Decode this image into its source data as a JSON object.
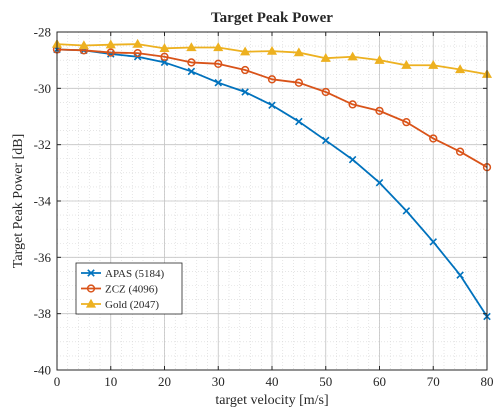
{
  "chart_data": {
    "type": "line",
    "title": "Target Peak Power",
    "xlabel": "target velocity [m/s]",
    "ylabel": "Target Peak Power [dB]",
    "xlim": [
      0,
      80
    ],
    "ylim": [
      -40,
      -28
    ],
    "xticks": [
      0,
      10,
      20,
      30,
      40,
      50,
      60,
      70,
      80
    ],
    "yticks": [
      -40,
      -38,
      -36,
      -34,
      -32,
      -30,
      -28
    ],
    "x": [
      0,
      5,
      10,
      15,
      20,
      25,
      30,
      35,
      40,
      45,
      50,
      55,
      60,
      65,
      70,
      75,
      80
    ],
    "grid": true,
    "minor_grid": true,
    "legend_position": "lower-left",
    "series": [
      {
        "name": "APAS (5184)",
        "color": "#0072BD",
        "marker": "x",
        "values": [
          -28.62,
          -28.65,
          -28.78,
          -28.88,
          -29.08,
          -29.4,
          -29.8,
          -30.13,
          -30.6,
          -31.18,
          -31.85,
          -32.53,
          -33.35,
          -34.35,
          -35.45,
          -36.63,
          -38.1
        ]
      },
      {
        "name": "ZCZ (4096)",
        "color": "#D95319",
        "marker": "o",
        "values": [
          -28.62,
          -28.65,
          -28.73,
          -28.75,
          -28.88,
          -29.08,
          -29.13,
          -29.35,
          -29.68,
          -29.8,
          -30.13,
          -30.57,
          -30.8,
          -31.2,
          -31.78,
          -32.25,
          -32.8
        ]
      },
      {
        "name": "Gold (2047)",
        "color": "#EDB120",
        "marker": "^",
        "values": [
          -28.43,
          -28.48,
          -28.45,
          -28.43,
          -28.58,
          -28.55,
          -28.55,
          -28.7,
          -28.68,
          -28.73,
          -28.93,
          -28.88,
          -29.0,
          -29.18,
          -29.18,
          -29.33,
          -29.5
        ]
      }
    ]
  }
}
